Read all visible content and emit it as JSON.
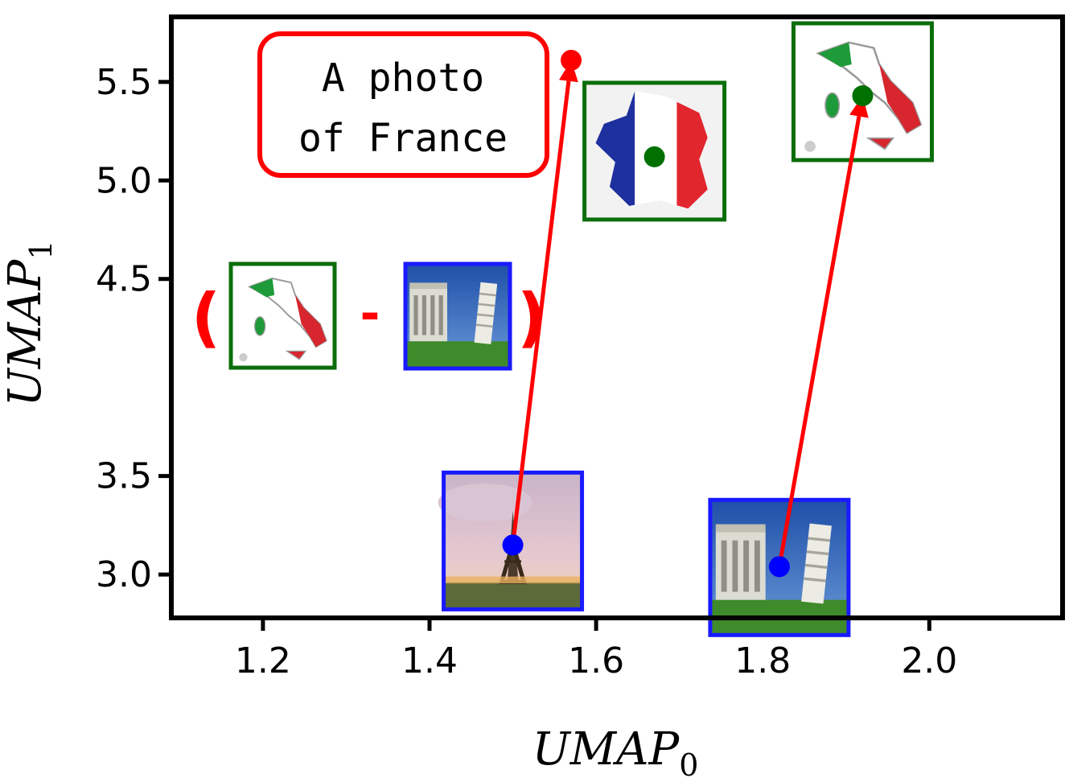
{
  "chart_data": {
    "type": "scatter",
    "xlabel": "UMAP",
    "xlabel_sub": "0",
    "ylabel": "UMAP",
    "ylabel_sub": "1",
    "xlim": [
      1.09,
      2.16
    ],
    "ylim": [
      2.78,
      5.83
    ],
    "xticks": [
      {
        "value": 1.2,
        "label": "1.2"
      },
      {
        "value": 1.4,
        "label": "1.4"
      },
      {
        "value": 1.6,
        "label": "1.6"
      },
      {
        "value": 1.8,
        "label": "1.8"
      },
      {
        "value": 2.0,
        "label": "2.0"
      }
    ],
    "yticks": [
      {
        "value": 3.0,
        "label": "3.0"
      },
      {
        "value": 3.5,
        "label": "3.5"
      },
      {
        "value": 4.5,
        "label": "4.5"
      },
      {
        "value": 5.0,
        "label": "5.0"
      },
      {
        "value": 5.5,
        "label": "5.5"
      }
    ],
    "points": [
      {
        "name": "eiffel-tower-photo",
        "x": 1.5,
        "y": 3.15,
        "color": "#0000ff",
        "image": "eiffel"
      },
      {
        "name": "pisa-tower-photo",
        "x": 1.82,
        "y": 3.04,
        "color": "#0000ff",
        "image": "pisa"
      },
      {
        "name": "france-flag-map",
        "x": 1.67,
        "y": 5.12,
        "color": "#007000",
        "image": "france"
      },
      {
        "name": "italy-flag-map",
        "x": 1.92,
        "y": 5.43,
        "color": "#007000",
        "image": "italy"
      },
      {
        "name": "text-query-endpoint",
        "x": 1.57,
        "y": 5.61,
        "color": "#ff0000",
        "image": null
      }
    ],
    "arrows": [
      {
        "from": [
          1.5,
          3.15
        ],
        "to": [
          1.57,
          5.61
        ]
      },
      {
        "from": [
          1.82,
          3.04
        ],
        "to": [
          1.92,
          5.43
        ]
      }
    ],
    "annotation": {
      "line1": "A photo",
      "line2": "of France"
    },
    "equation": {
      "open": "(",
      "minus": "-",
      "close": ")"
    },
    "colors": {
      "arrow": "#ff0000",
      "photo_frame": "#1a1aff",
      "flag_frame": "#0b6e0b",
      "axes": "#000000"
    }
  }
}
